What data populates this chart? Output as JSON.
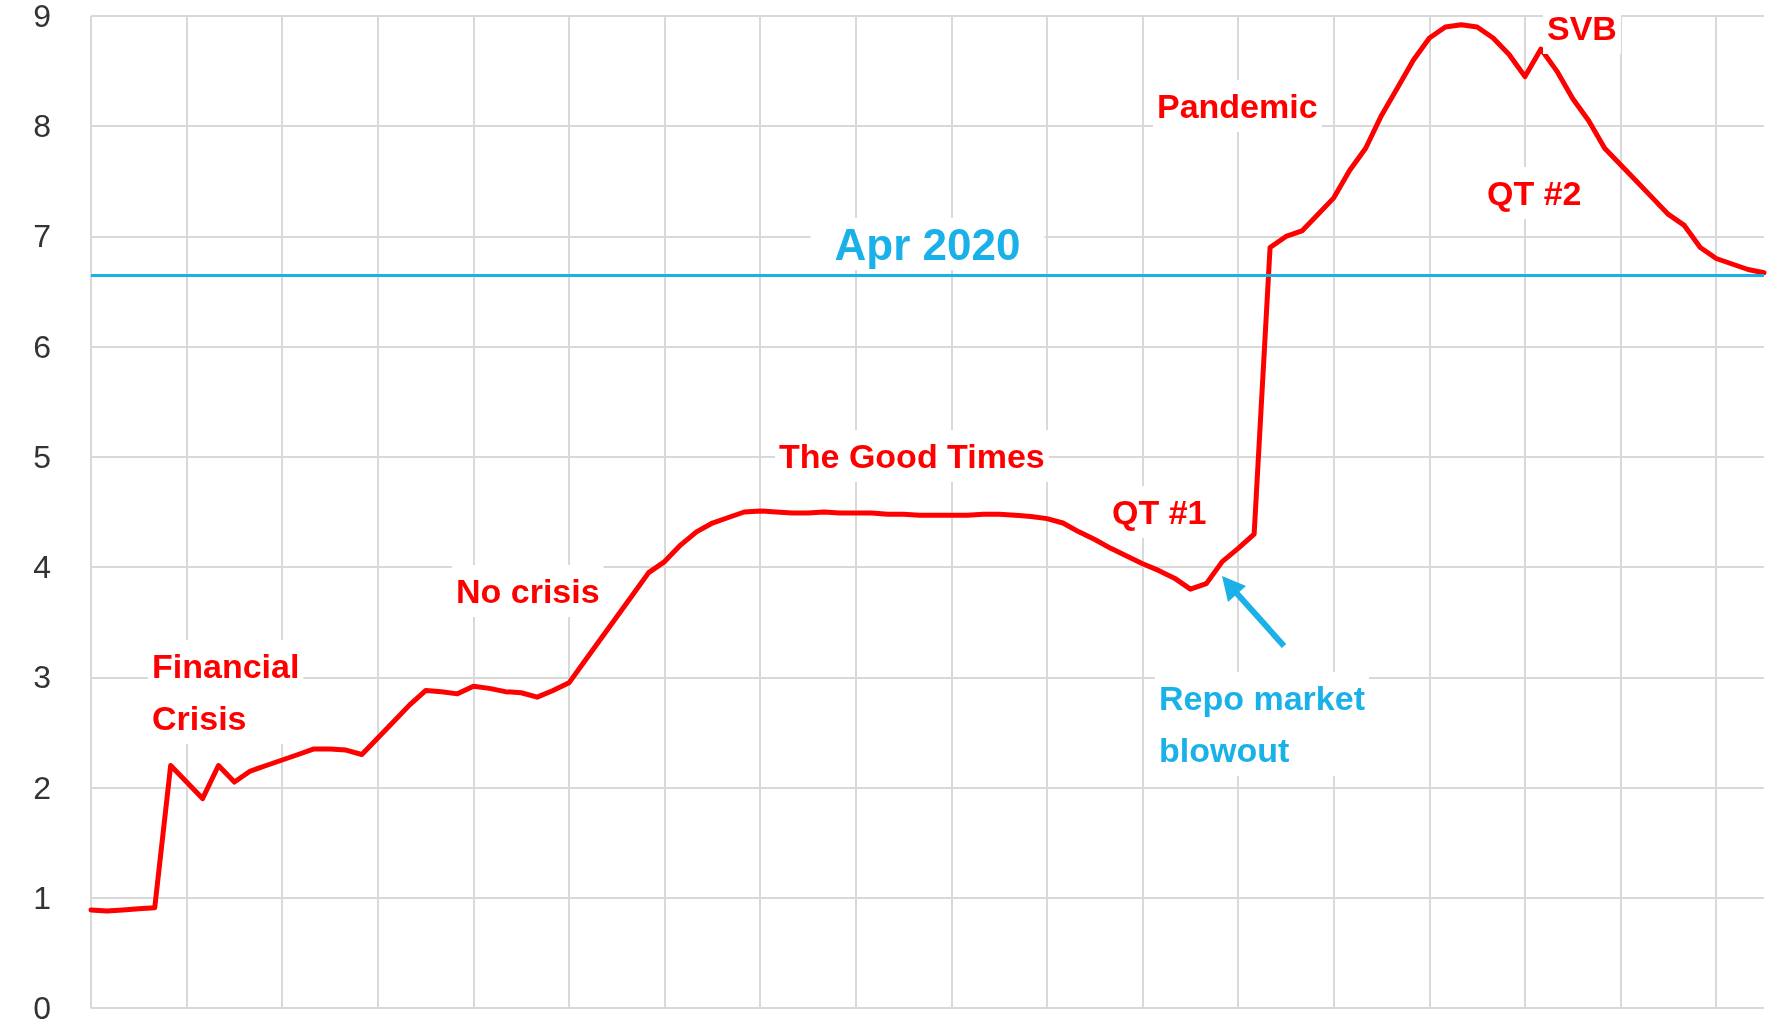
{
  "chart_data": {
    "type": "line",
    "categories": [
      null,
      null,
      null,
      null,
      null,
      null,
      null,
      null,
      null,
      null,
      null,
      null,
      null,
      null,
      null,
      null,
      null,
      null,
      null,
      null,
      null,
      null,
      null,
      null,
      null,
      null,
      null,
      null,
      null,
      null,
      null,
      null,
      null,
      null,
      null,
      null,
      null,
      null,
      null,
      null,
      null,
      null,
      null,
      null,
      null,
      null,
      null,
      null,
      null,
      null,
      null,
      null,
      null,
      null,
      null,
      null,
      null,
      null,
      null,
      null,
      null,
      null,
      null,
      null,
      null,
      null,
      null,
      null,
      null,
      null,
      null,
      null,
      null,
      null,
      null,
      null,
      null,
      null,
      null,
      null,
      null,
      null,
      null,
      null,
      null,
      null,
      null,
      null,
      null,
      null,
      null,
      null,
      null,
      null,
      null,
      null,
      null,
      null,
      null,
      null,
      null,
      null,
      null,
      null,
      null,
      null
    ],
    "series": [
      {
        "color": "#ff0000",
        "values": [
          0.89,
          0.88,
          0.89,
          0.9,
          0.91,
          2.2,
          2.05,
          1.9,
          2.2,
          2.05,
          2.15,
          2.2,
          2.25,
          2.3,
          2.35,
          2.35,
          2.34,
          2.3,
          2.45,
          2.6,
          2.75,
          2.88,
          2.87,
          2.85,
          2.92,
          2.9,
          2.87,
          2.86,
          2.82,
          2.88,
          2.95,
          3.15,
          3.35,
          3.55,
          3.75,
          3.95,
          4.05,
          4.2,
          4.32,
          4.4,
          4.45,
          4.5,
          4.51,
          4.5,
          4.49,
          4.49,
          4.5,
          4.49,
          4.49,
          4.49,
          4.48,
          4.48,
          4.47,
          4.47,
          4.47,
          4.47,
          4.48,
          4.48,
          4.47,
          4.46,
          4.44,
          4.4,
          4.32,
          4.25,
          4.17,
          4.1,
          4.03,
          3.97,
          3.9,
          3.8,
          3.85,
          4.05,
          4.17,
          4.3,
          6.9,
          7.0,
          7.05,
          7.2,
          7.35,
          7.6,
          7.8,
          8.1,
          8.35,
          8.6,
          8.8,
          8.9,
          8.92,
          8.9,
          8.8,
          8.65,
          8.45,
          8.7,
          8.5,
          8.25,
          8.05,
          7.8,
          7.65,
          7.5,
          7.35,
          7.2,
          7.1,
          6.9,
          6.8,
          6.75,
          6.7,
          6.67
        ]
      }
    ],
    "ylim": [
      0,
      9
    ],
    "yticks": [
      0,
      1,
      2,
      3,
      4,
      5,
      6,
      7,
      8,
      9
    ],
    "grid": true,
    "marker": "none",
    "line_style": "solid",
    "ref_lines": [
      {
        "axis": "y",
        "value": 6.65,
        "label": "Apr 2020",
        "color": "#1ab0e8"
      }
    ],
    "annotations": [
      "Financial\nCrisis",
      "No crisis",
      "The Good Times",
      "QT #1",
      "Pandemic",
      "SVB",
      "QT #2",
      "Repo market\nblowout"
    ]
  }
}
